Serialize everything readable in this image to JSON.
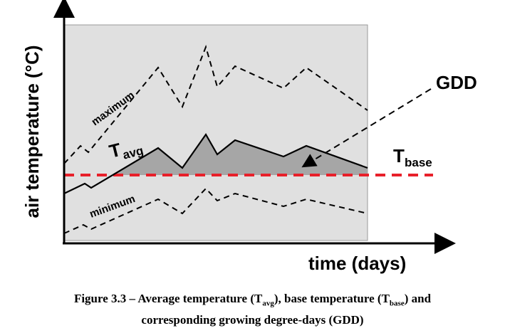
{
  "figure": {
    "y_axis_label": "air temperature (°C)",
    "x_axis_label": "time (days)",
    "maximum_label": "maximum",
    "minimum_label": "minimum",
    "tavg_main": "T",
    "tavg_sub": "avg",
    "tbase_main": "T",
    "tbase_sub": "base",
    "gdd_label": "GDD",
    "colors": {
      "panel_background": "#e0e0e0",
      "gdd_area": "#a6a6a6",
      "base_line": "#e8202a",
      "curves": "#000000"
    }
  },
  "caption": {
    "line1_a": "Figure 3.3 – Average temperature (T",
    "line1_sub1": "avg",
    "line1_b": "), base temperature (T",
    "line1_sub2": "base",
    "line1_c": ") and",
    "line2": "corresponding growing degree-days (GDD)"
  }
}
